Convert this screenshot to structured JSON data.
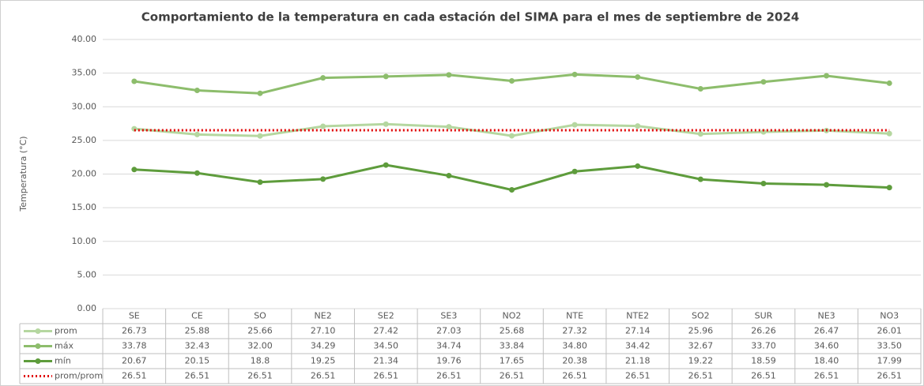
{
  "chart_data": {
    "type": "line",
    "title": "Comportamiento de la temperatura en cada estación del SIMA para el mes de septiembre de 2024",
    "y_label": "Temperatura (°C)",
    "categories": [
      "SE",
      "CE",
      "SO",
      "NE2",
      "SE2",
      "SE3",
      "NO2",
      "NTE",
      "NTE2",
      "SO2",
      "SUR",
      "NE3",
      "NO3"
    ],
    "series": [
      {
        "name": "prom",
        "color": "#b5d7a0",
        "linestyle": "solid",
        "markers": true,
        "values": [
          26.73,
          25.88,
          25.66,
          27.1,
          27.42,
          27.03,
          25.68,
          27.32,
          27.14,
          25.96,
          26.26,
          26.47,
          26.01
        ],
        "value_labels": [
          "26.73",
          "25.88",
          "25.66",
          "27.10",
          "27.42",
          "27.03",
          "25.68",
          "27.32",
          "27.14",
          "25.96",
          "26.26",
          "26.47",
          "26.01"
        ]
      },
      {
        "name": "máx",
        "color": "#8dbd6c",
        "linestyle": "solid",
        "markers": true,
        "values": [
          33.78,
          32.43,
          32.0,
          34.29,
          34.5,
          34.74,
          33.84,
          34.8,
          34.42,
          32.67,
          33.7,
          34.6,
          33.5
        ],
        "value_labels": [
          "33.78",
          "32.43",
          "32.00",
          "34.29",
          "34.50",
          "34.74",
          "33.84",
          "34.80",
          "34.42",
          "32.67",
          "33.70",
          "34.60",
          "33.50"
        ]
      },
      {
        "name": "mín",
        "color": "#5e9c3c",
        "linestyle": "solid",
        "markers": true,
        "values": [
          20.67,
          20.15,
          18.8,
          19.25,
          21.34,
          19.76,
          17.65,
          20.38,
          21.18,
          19.22,
          18.59,
          18.4,
          17.99
        ],
        "value_labels": [
          "20.67",
          "20.15",
          "18.8",
          "19.25",
          "21.34",
          "19.76",
          "17.65",
          "20.38",
          "21.18",
          "19.22",
          "18.59",
          "18.40",
          "17.99"
        ]
      },
      {
        "name": "prom/prom",
        "color": "#e00000",
        "linestyle": "dotted",
        "markers": false,
        "values": [
          26.51,
          26.51,
          26.51,
          26.51,
          26.51,
          26.51,
          26.51,
          26.51,
          26.51,
          26.51,
          26.51,
          26.51,
          26.51
        ],
        "value_labels": [
          "26.51",
          "26.51",
          "26.51",
          "26.51",
          "26.51",
          "26.51",
          "26.51",
          "26.51",
          "26.51",
          "26.51",
          "26.51",
          "26.51",
          "26.51"
        ]
      }
    ],
    "ylim": [
      0,
      40
    ],
    "yticks": [
      {
        "value": 0,
        "label": "0.00"
      },
      {
        "value": 5,
        "label": "5.00"
      },
      {
        "value": 10,
        "label": "10.00"
      },
      {
        "value": 15,
        "label": "15.00"
      },
      {
        "value": 20,
        "label": "20.00"
      },
      {
        "value": 25,
        "label": "25.00"
      },
      {
        "value": 30,
        "label": "30.00"
      },
      {
        "value": 35,
        "label": "35.00"
      },
      {
        "value": 40,
        "label": "40.00"
      }
    ],
    "grid": true
  }
}
